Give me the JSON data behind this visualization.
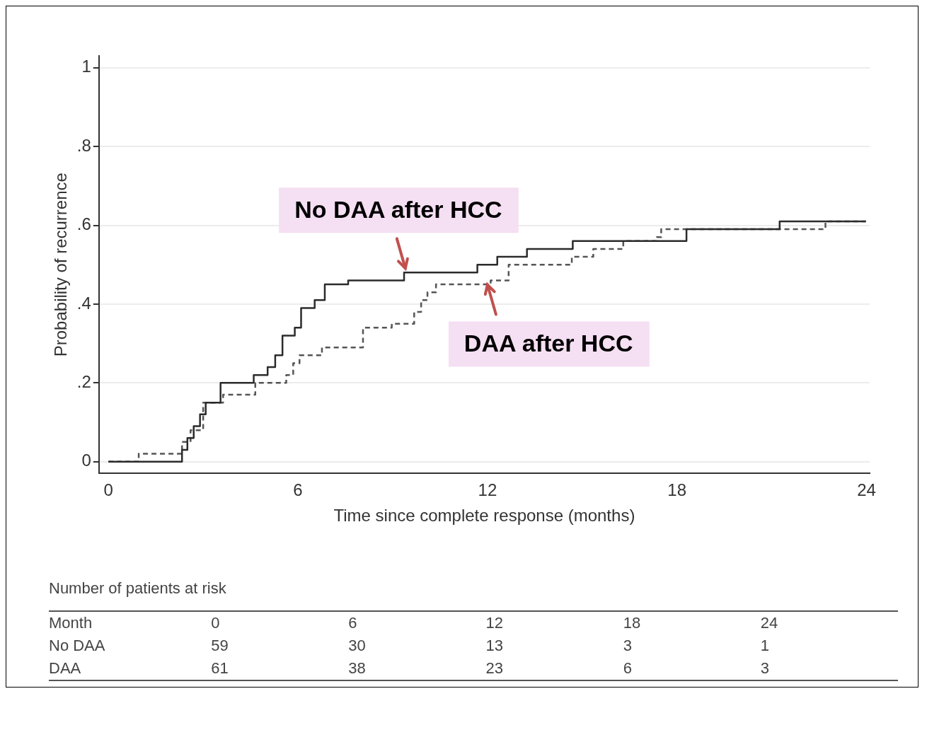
{
  "chart_data": {
    "type": "step",
    "xlabel": "Time since complete response (months)",
    "ylabel": "Probability of recurrence",
    "xlim": [
      -0.3,
      24.1
    ],
    "ylim": [
      -0.03,
      1.03
    ],
    "xticks": [
      0,
      6,
      12,
      18,
      24
    ],
    "yticks": [
      0,
      {
        "value": 0.2,
        "label": ".2"
      },
      {
        "value": 0.4,
        "label": ".4"
      },
      {
        "value": 0.6,
        "label": ".6"
      },
      {
        "value": 0.8,
        "label": ".8"
      },
      1
    ],
    "grid": "y",
    "legend": false,
    "marker": "none",
    "series": [
      {
        "color": "#2b2b2b",
        "line_style": "solid",
        "x": [
          0,
          2.33,
          2.5,
          2.7,
          2.9,
          3.08,
          3.55,
          4.6,
          5.04,
          5.28,
          5.51,
          5.9,
          6.1,
          6.53,
          6.85,
          7.59,
          9.36,
          11.68,
          12.31,
          13.25,
          14.7,
          18.3,
          21.25,
          23.98
        ],
        "values": [
          0,
          0.03,
          0.06,
          0.09,
          0.12,
          0.15,
          0.2,
          0.22,
          0.24,
          0.27,
          0.32,
          0.34,
          0.39,
          0.41,
          0.45,
          0.46,
          0.48,
          0.5,
          0.52,
          0.54,
          0.56,
          0.59,
          0.61,
          0.61
        ]
      },
      {
        "color": "#555555",
        "line_style": "dashed",
        "x": [
          0,
          0.96,
          2.33,
          2.6,
          3.0,
          3.63,
          4.65,
          5.63,
          5.85,
          6.05,
          6.76,
          8.06,
          8.97,
          9.68,
          9.9,
          10.1,
          10.37,
          12.1,
          12.67,
          14.67,
          15.35,
          16.3,
          17.36,
          17.5,
          22.7,
          23.98
        ],
        "values": [
          0,
          0.02,
          0.05,
          0.08,
          0.15,
          0.17,
          0.2,
          0.22,
          0.25,
          0.27,
          0.29,
          0.34,
          0.35,
          0.38,
          0.41,
          0.43,
          0.45,
          0.46,
          0.5,
          0.52,
          0.54,
          0.56,
          0.57,
          0.59,
          0.61,
          0.61
        ]
      }
    ],
    "annotations": [
      {
        "text": "No DAA after HCC",
        "x": 9.4,
        "y": 0.48
      },
      {
        "text": "DAA after HCC",
        "x": 12.0,
        "y": 0.46
      },
      "Number of patients at risk",
      "Month",
      "0",
      "6",
      "12",
      "18",
      "24",
      "No DAA",
      "59",
      "30",
      "13",
      "3",
      "1",
      "DAA",
      "61",
      "38",
      "23",
      "6",
      "3"
    ]
  }
}
